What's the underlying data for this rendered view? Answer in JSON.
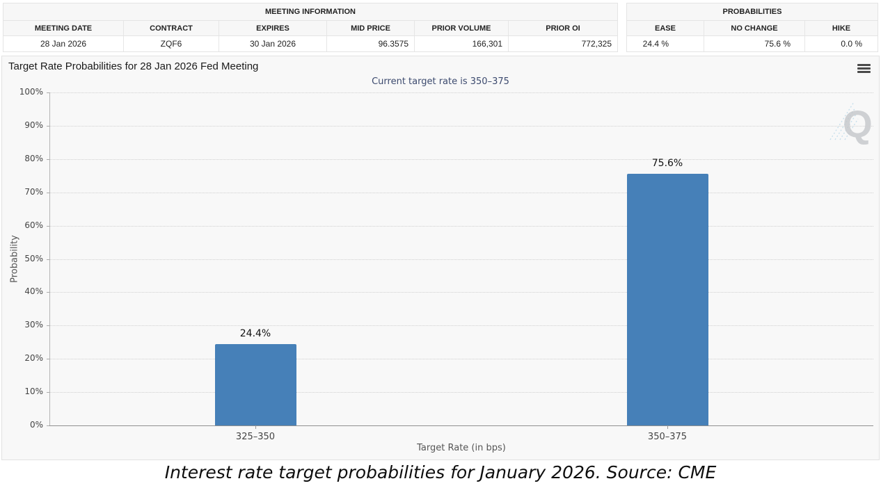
{
  "header_tables": {
    "meeting_info": {
      "title": "MEETING INFORMATION",
      "columns": [
        "MEETING DATE",
        "CONTRACT",
        "EXPIRES",
        "MID PRICE",
        "PRIOR VOLUME",
        "PRIOR OI"
      ],
      "row": [
        "28 Jan 2026",
        "ZQF6",
        "30 Jan 2026",
        "96.3575",
        "166,301",
        "772,325"
      ]
    },
    "probabilities": {
      "title": "PROBABILITIES",
      "columns": [
        "EASE",
        "NO CHANGE",
        "HIKE"
      ],
      "row": [
        "24.4 %",
        "75.6 %",
        "0.0 %"
      ]
    }
  },
  "chart_data": {
    "type": "bar",
    "title": "Target Rate Probabilities for 28 Jan 2026 Fed Meeting",
    "subtitle": "Current target rate is 350–375",
    "categories": [
      "325–350",
      "350–375"
    ],
    "values": [
      24.4,
      75.6
    ],
    "value_labels": [
      "24.4%",
      "75.6%"
    ],
    "xlabel": "Target Rate (in bps)",
    "ylabel": "Probability",
    "ylim": [
      0,
      100
    ],
    "ytick_step": 10,
    "ytick_suffix": "%",
    "grid": "horizontal-dotted",
    "legend": "none"
  },
  "icons": {
    "menu": "hamburger-menu"
  },
  "watermark": "Q",
  "caption": "Interest rate target probabilities for January 2026. Source: CME",
  "colors": {
    "bar": "#4680B8",
    "subtitle_text": "#3C4A6E",
    "panel_bg": "#F8F8F8",
    "grid": "#CFCFCF",
    "x_axis": "#8F8F8F",
    "y_axis": "#B5B5B5"
  }
}
